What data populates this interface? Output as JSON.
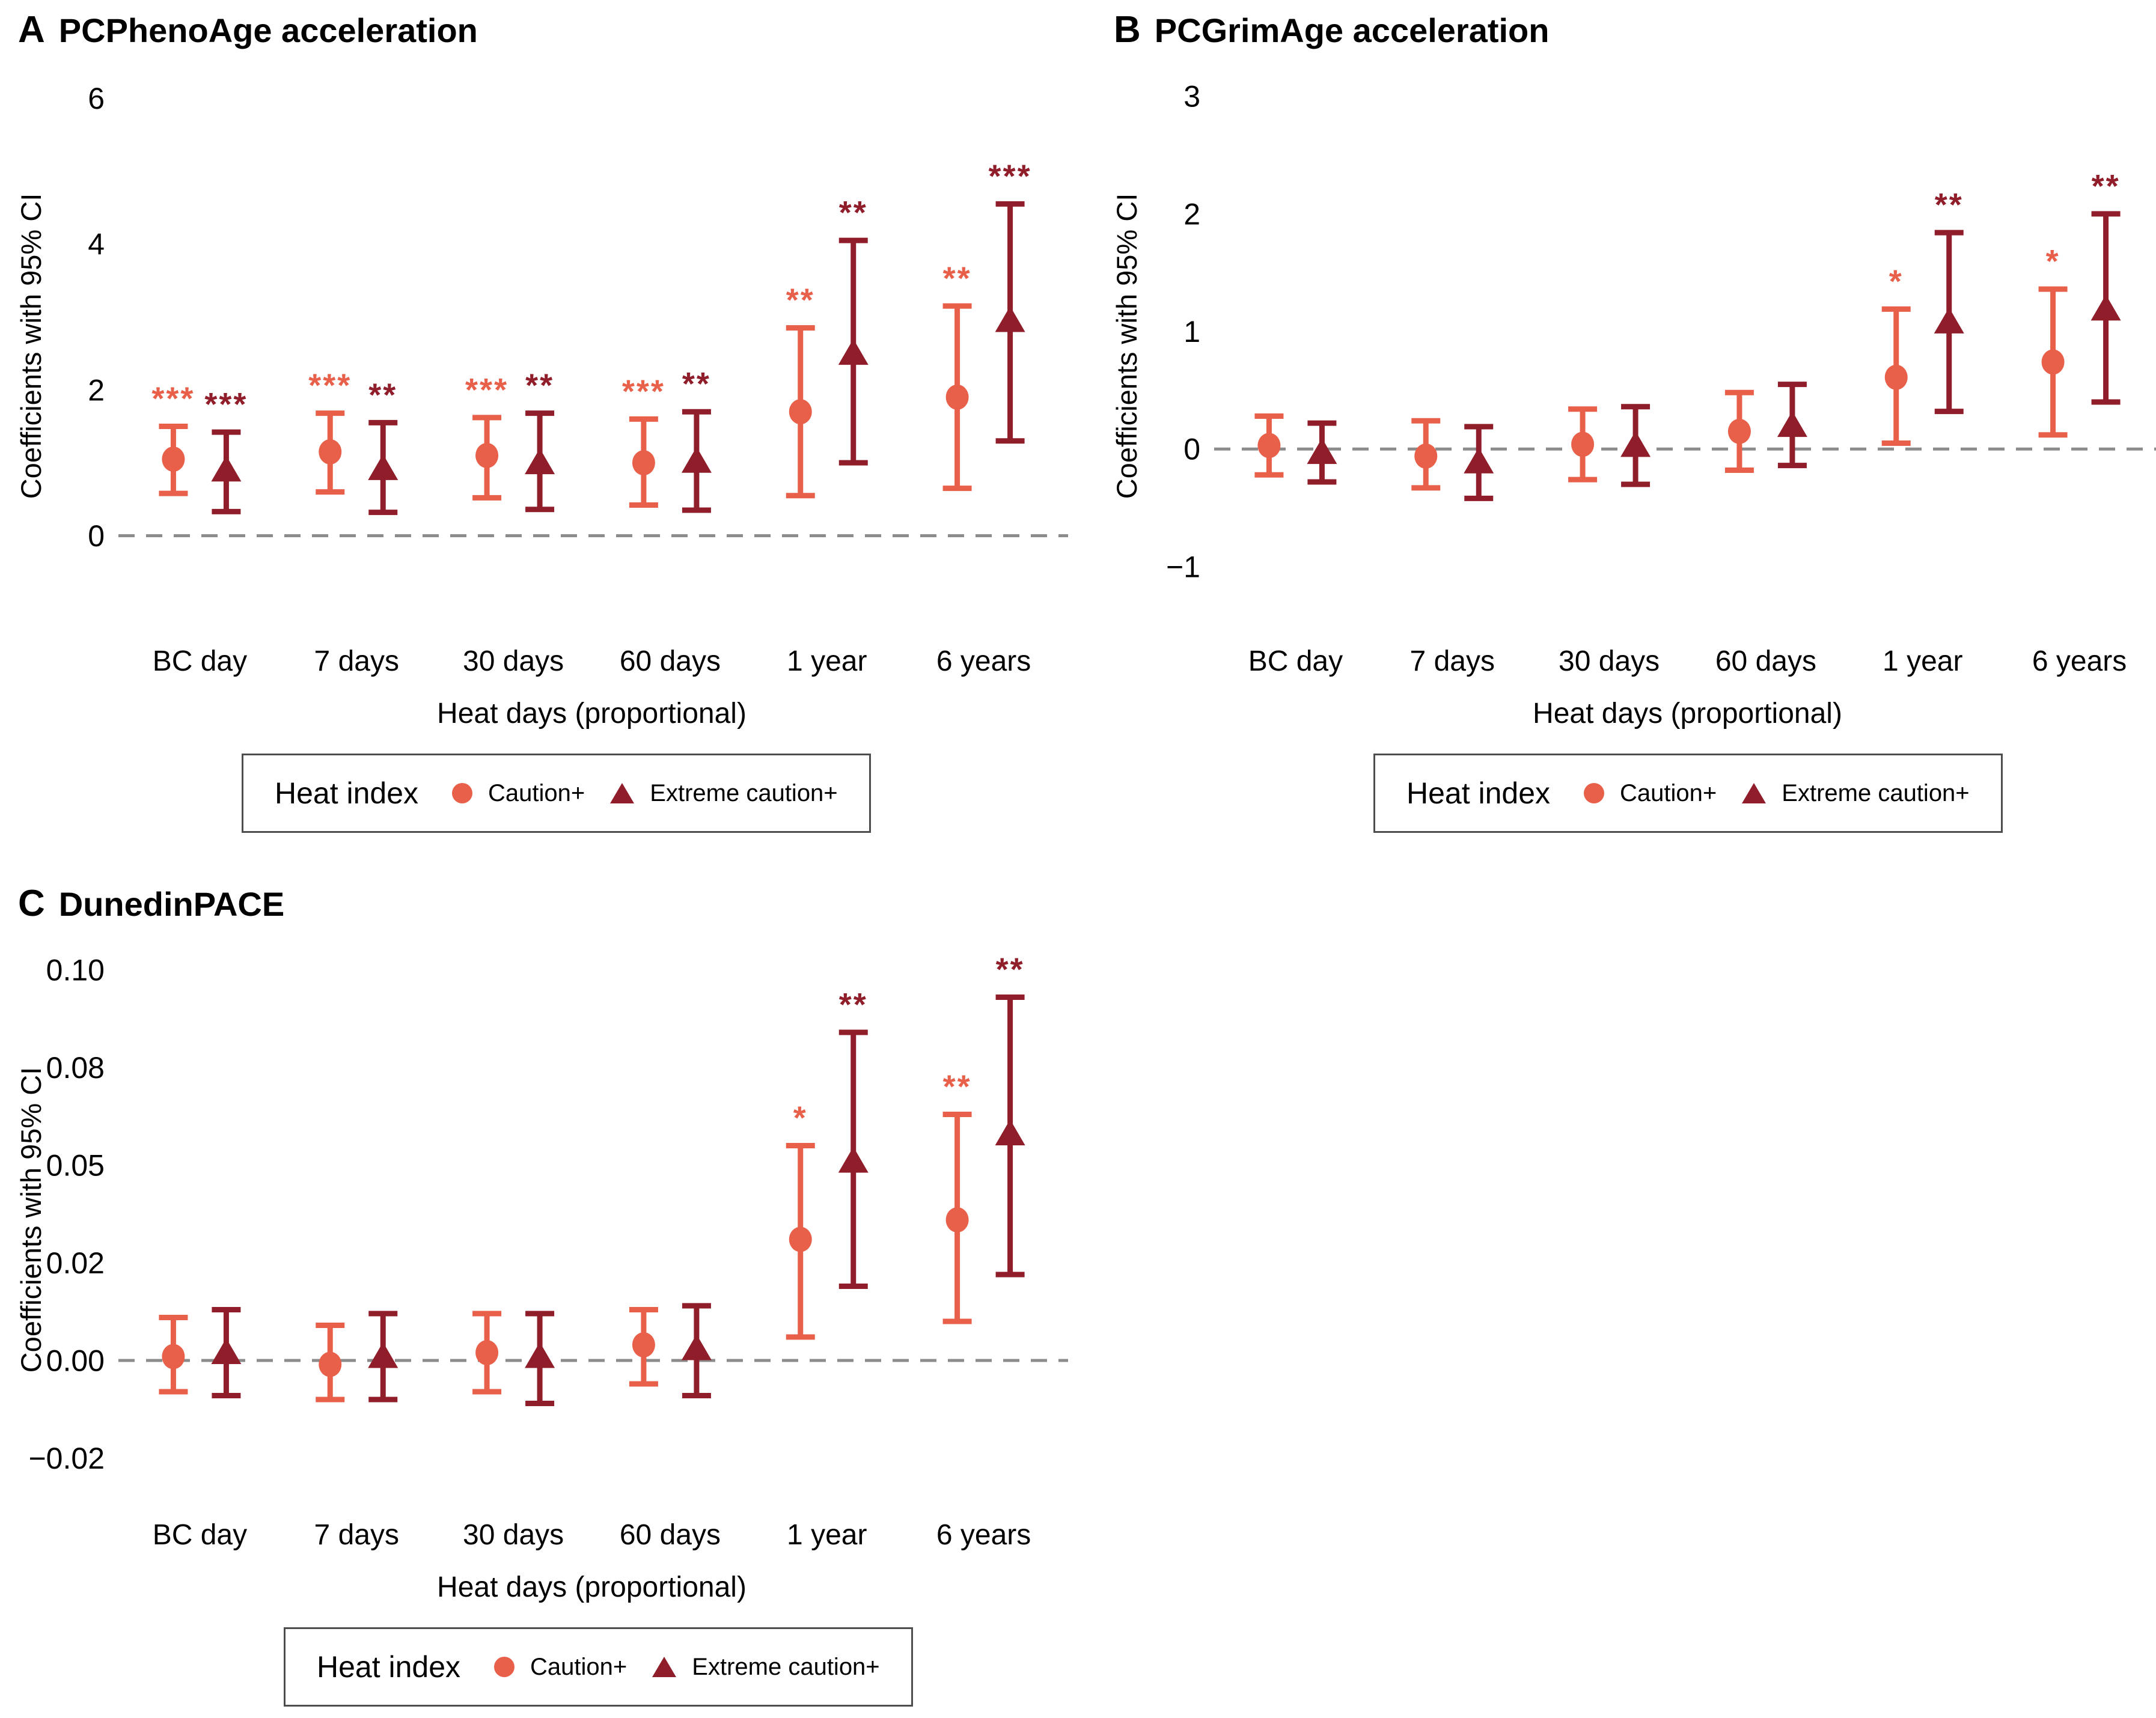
{
  "colors": {
    "caution": "#E8604A",
    "extreme": "#8F1D2A",
    "zero_line": "#8C8C8C",
    "text": "#000000"
  },
  "legend": {
    "title": "Heat index",
    "items": [
      "Caution+",
      "Extreme caution+"
    ]
  },
  "chart_data": [
    {
      "panel_label": "A",
      "title": "PCPhenoAge acceleration",
      "type": "scatter",
      "ylabel": "Coefficients with 95% CI",
      "xlabel": "Heat days (proportional)",
      "legend_title": "Heat index",
      "legend_position": "bottom",
      "grid": false,
      "categories": [
        "BC day",
        "7 days",
        "30 days",
        "60 days",
        "1 year",
        "6 years"
      ],
      "ylim": [
        -1.15,
        6.35
      ],
      "yticks": [
        {
          "v": 0,
          "label": "0"
        },
        {
          "v": 2,
          "label": "2"
        },
        {
          "v": 4,
          "label": "4"
        },
        {
          "v": 6,
          "label": "6"
        }
      ],
      "zero_line": 0,
      "series": [
        {
          "name": "Caution+",
          "marker": "circle",
          "color_key": "caution",
          "points": [
            {
              "category": "BC day",
              "est": 1.05,
              "lo": 0.58,
              "hi": 1.5,
              "sig": "***"
            },
            {
              "category": "7 days",
              "est": 1.15,
              "lo": 0.6,
              "hi": 1.68,
              "sig": "***"
            },
            {
              "category": "30 days",
              "est": 1.1,
              "lo": 0.52,
              "hi": 1.62,
              "sig": "***"
            },
            {
              "category": "60 days",
              "est": 1.0,
              "lo": 0.42,
              "hi": 1.6,
              "sig": "***"
            },
            {
              "category": "1 year",
              "est": 1.7,
              "lo": 0.55,
              "hi": 2.85,
              "sig": "**"
            },
            {
              "category": "6 years",
              "est": 1.9,
              "lo": 0.65,
              "hi": 3.15,
              "sig": "**"
            }
          ]
        },
        {
          "name": "Extreme caution+",
          "marker": "triangle",
          "color_key": "extreme",
          "points": [
            {
              "category": "BC day",
              "est": 0.9,
              "lo": 0.33,
              "hi": 1.42,
              "sig": "***"
            },
            {
              "category": "7 days",
              "est": 0.92,
              "lo": 0.32,
              "hi": 1.55,
              "sig": "**"
            },
            {
              "category": "30 days",
              "est": 1.0,
              "lo": 0.36,
              "hi": 1.68,
              "sig": "**"
            },
            {
              "category": "60 days",
              "est": 1.02,
              "lo": 0.35,
              "hi": 1.7,
              "sig": "**"
            },
            {
              "category": "1 year",
              "est": 2.5,
              "lo": 1.0,
              "hi": 4.05,
              "sig": "**"
            },
            {
              "category": "6 years",
              "est": 2.95,
              "lo": 1.3,
              "hi": 4.55,
              "sig": "***"
            }
          ]
        }
      ]
    },
    {
      "panel_label": "B",
      "title": "PCGrimAge acceleration",
      "type": "scatter",
      "ylabel": "Coefficients with 95% CI",
      "xlabel": "Heat days (proportional)",
      "legend_title": "Heat index",
      "legend_position": "bottom",
      "grid": false,
      "categories": [
        "BC day",
        "7 days",
        "30 days",
        "60 days",
        "1 year",
        "6 years"
      ],
      "ylim": [
        -1.45,
        3.2
      ],
      "yticks": [
        {
          "v": -1,
          "label": "−1"
        },
        {
          "v": 0,
          "label": "0"
        },
        {
          "v": 1,
          "label": "1"
        },
        {
          "v": 2,
          "label": "2"
        },
        {
          "v": 3,
          "label": "3"
        }
      ],
      "zero_line": 0,
      "series": [
        {
          "name": "Caution+",
          "marker": "circle",
          "color_key": "caution",
          "points": [
            {
              "category": "BC day",
              "est": 0.03,
              "lo": -0.22,
              "hi": 0.28,
              "sig": null
            },
            {
              "category": "7 days",
              "est": -0.06,
              "lo": -0.33,
              "hi": 0.24,
              "sig": null
            },
            {
              "category": "30 days",
              "est": 0.04,
              "lo": -0.26,
              "hi": 0.34,
              "sig": null
            },
            {
              "category": "60 days",
              "est": 0.15,
              "lo": -0.18,
              "hi": 0.48,
              "sig": null
            },
            {
              "category": "1 year",
              "est": 0.61,
              "lo": 0.05,
              "hi": 1.19,
              "sig": "*"
            },
            {
              "category": "6 years",
              "est": 0.74,
              "lo": 0.12,
              "hi": 1.36,
              "sig": "*"
            }
          ]
        },
        {
          "name": "Extreme caution+",
          "marker": "triangle",
          "color_key": "extreme",
          "points": [
            {
              "category": "BC day",
              "est": -0.03,
              "lo": -0.28,
              "hi": 0.22,
              "sig": null
            },
            {
              "category": "7 days",
              "est": -0.11,
              "lo": -0.42,
              "hi": 0.19,
              "sig": null
            },
            {
              "category": "30 days",
              "est": 0.03,
              "lo": -0.3,
              "hi": 0.36,
              "sig": null
            },
            {
              "category": "60 days",
              "est": 0.2,
              "lo": -0.14,
              "hi": 0.55,
              "sig": null
            },
            {
              "category": "1 year",
              "est": 1.08,
              "lo": 0.32,
              "hi": 1.84,
              "sig": "**"
            },
            {
              "category": "6 years",
              "est": 1.19,
              "lo": 0.4,
              "hi": 2.0,
              "sig": "**"
            }
          ]
        }
      ]
    },
    {
      "panel_label": "C",
      "title": "DunedinPACE",
      "type": "scatter",
      "ylabel": "Coefficients with 95% CI",
      "xlabel": "Heat days (proportional)",
      "legend_title": "Heat index",
      "legend_position": "bottom",
      "grid": false,
      "categories": [
        "BC day",
        "7 days",
        "30 days",
        "60 days",
        "1 year",
        "6 years"
      ],
      "ylim": [
        -0.034,
        0.106
      ],
      "yticks": [
        {
          "v": -0.025,
          "label": "−0.02"
        },
        {
          "v": 0,
          "label": "0.00"
        },
        {
          "v": 0.025,
          "label": "0.02"
        },
        {
          "v": 0.05,
          "label": "0.05"
        },
        {
          "v": 0.075,
          "label": "0.08"
        },
        {
          "v": 0.1,
          "label": "0.10"
        }
      ],
      "zero_line": 0,
      "series": [
        {
          "name": "Caution+",
          "marker": "circle",
          "color_key": "caution",
          "points": [
            {
              "category": "BC day",
              "est": 0.001,
              "lo": -0.008,
              "hi": 0.011,
              "sig": null
            },
            {
              "category": "7 days",
              "est": -0.001,
              "lo": -0.01,
              "hi": 0.009,
              "sig": null
            },
            {
              "category": "30 days",
              "est": 0.002,
              "lo": -0.008,
              "hi": 0.012,
              "sig": null
            },
            {
              "category": "60 days",
              "est": 0.004,
              "lo": -0.006,
              "hi": 0.013,
              "sig": null
            },
            {
              "category": "1 year",
              "est": 0.031,
              "lo": 0.006,
              "hi": 0.055,
              "sig": "*"
            },
            {
              "category": "6 years",
              "est": 0.036,
              "lo": 0.01,
              "hi": 0.063,
              "sig": "**"
            }
          ]
        },
        {
          "name": "Extreme caution+",
          "marker": "triangle",
          "color_key": "extreme",
          "points": [
            {
              "category": "BC day",
              "est": 0.002,
              "lo": -0.009,
              "hi": 0.013,
              "sig": null
            },
            {
              "category": "7 days",
              "est": 0.001,
              "lo": -0.01,
              "hi": 0.012,
              "sig": null
            },
            {
              "category": "30 days",
              "est": 0.001,
              "lo": -0.011,
              "hi": 0.012,
              "sig": null
            },
            {
              "category": "60 days",
              "est": 0.003,
              "lo": -0.009,
              "hi": 0.014,
              "sig": null
            },
            {
              "category": "1 year",
              "est": 0.051,
              "lo": 0.019,
              "hi": 0.084,
              "sig": "**"
            },
            {
              "category": "6 years",
              "est": 0.058,
              "lo": 0.022,
              "hi": 0.093,
              "sig": "**"
            }
          ]
        }
      ]
    }
  ]
}
